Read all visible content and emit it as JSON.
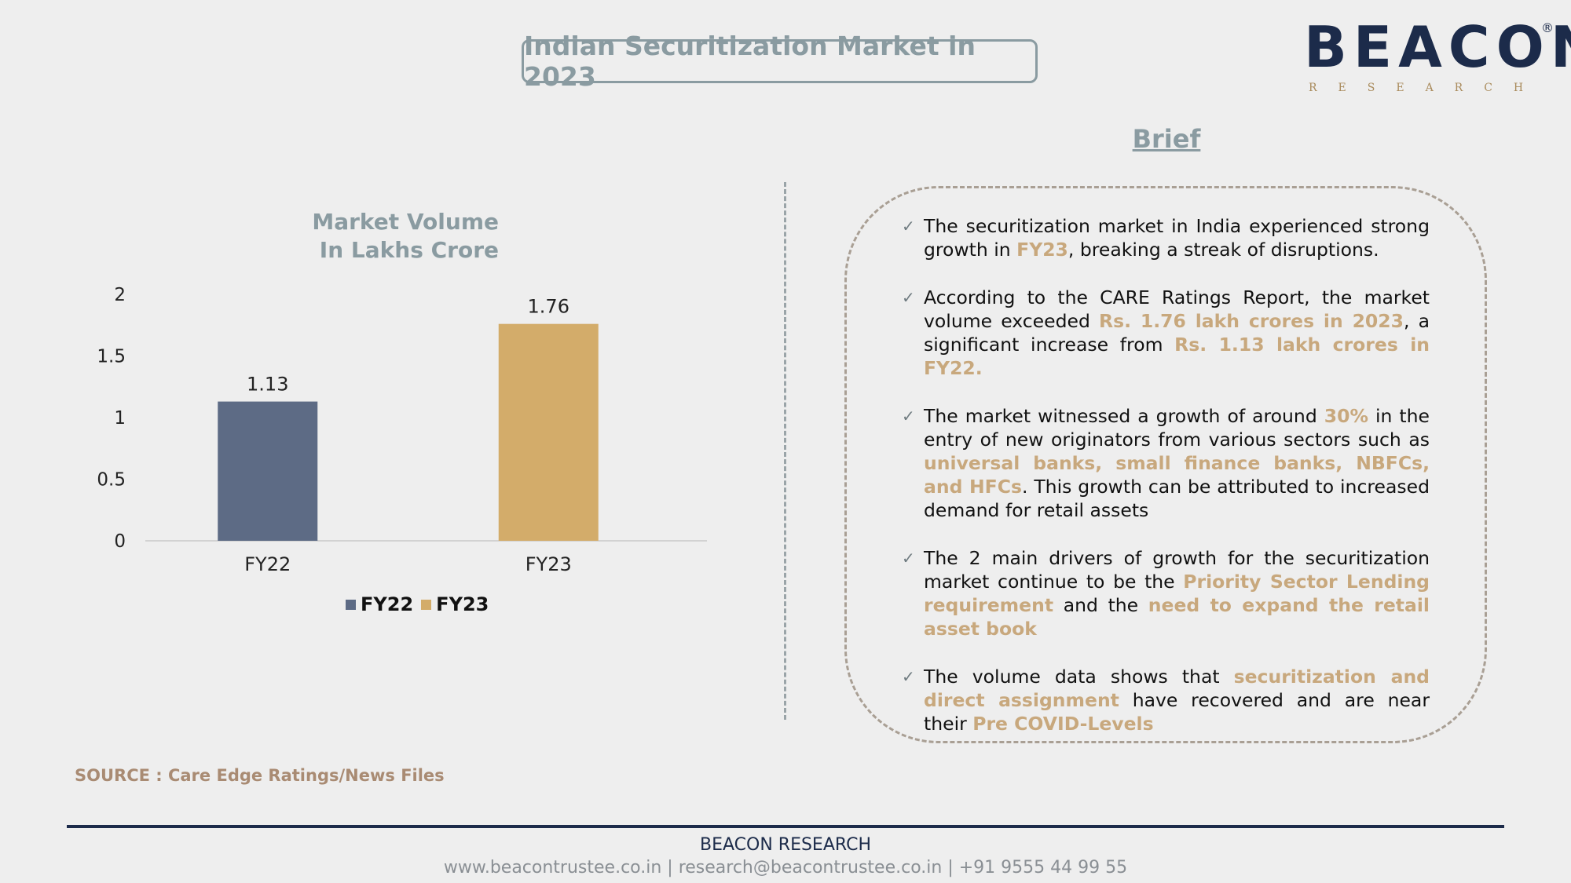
{
  "header": {
    "title": "Indian Securitization Market in 2023",
    "logo_word": "BEACON",
    "logo_sub": "RESEARCH",
    "logo_reg": "®"
  },
  "chart_title": {
    "line1": "Market Volume",
    "line2": "In Lakhs Crore"
  },
  "chart_data": {
    "type": "bar",
    "categories": [
      "FY22",
      "FY23"
    ],
    "values": [
      1.13,
      1.76
    ],
    "colors": [
      "#5d6b85",
      "#d3ac6a"
    ],
    "yticks": [
      "0",
      "0.5",
      "1",
      "1.5",
      "2"
    ],
    "ylim": [
      0,
      2
    ],
    "grid": false,
    "legend": [
      "FY22",
      "FY23"
    ],
    "legend_position": "bottom"
  },
  "brief": {
    "title": "Brief",
    "check_glyph": "✓",
    "items": [
      [
        {
          "t": "The securitization market in India experienced strong growth in "
        },
        {
          "t": "FY23",
          "h": true
        },
        {
          "t": ", breaking a streak of disruptions."
        }
      ],
      [
        {
          "t": "According to the CARE Ratings Report, the market volume exceeded "
        },
        {
          "t": "Rs. 1.76 lakh crores in 2023",
          "h": true
        },
        {
          "t": ", a significant increase from "
        },
        {
          "t": "Rs. 1.13 lakh crores in FY22.",
          "h": true
        }
      ],
      [
        {
          "t": "The market witnessed a growth of around "
        },
        {
          "t": "30%",
          "h": true
        },
        {
          "t": " in the entry of new originators from various sectors such as "
        },
        {
          "t": "universal banks, small finance banks, NBFCs, and HFCs",
          "h": true
        },
        {
          "t": ". This growth can be attributed to increased demand for retail assets"
        }
      ],
      [
        {
          "t": "The 2 main drivers of growth for the securitization market continue to be the "
        },
        {
          "t": "Priority Sector Lending requirement",
          "h": true
        },
        {
          "t": " and the "
        },
        {
          "t": "need to expand the retail asset book",
          "h": true
        }
      ],
      [
        {
          "t": "The volume data shows that "
        },
        {
          "t": "securitization and direct assignment",
          "h": true
        },
        {
          "t": " have recovered and are near their "
        },
        {
          "t": "Pre COVID-Levels",
          "h": true
        }
      ]
    ]
  },
  "source": "SOURCE : Care Edge Ratings/News Files",
  "footer": {
    "brand": "BEACON RESEARCH",
    "contact": "www.beacontrustee.co.in | research@beacontrustee.co.in | +91 9555 44 99 55"
  }
}
